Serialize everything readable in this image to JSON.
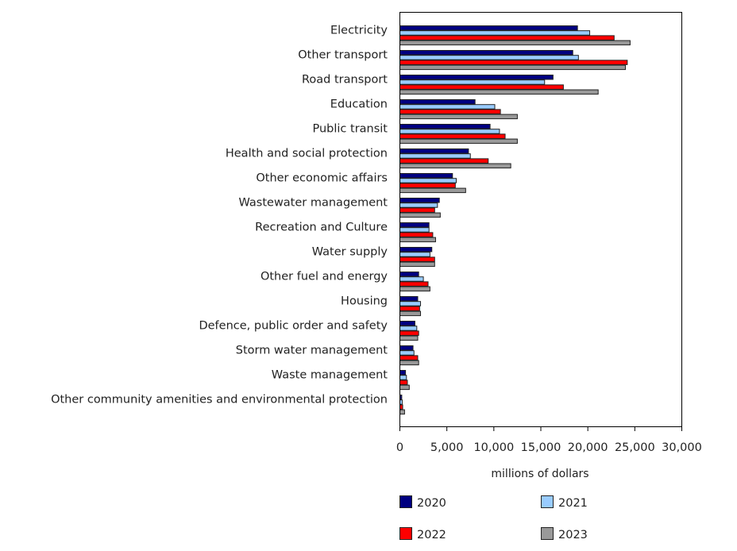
{
  "chart_data": {
    "type": "bar",
    "orientation": "horizontal",
    "title": "",
    "xlabel": "millions of dollars",
    "ylabel": "",
    "xlim": [
      0,
      30000
    ],
    "xticks": [
      0,
      5000,
      10000,
      15000,
      20000,
      25000,
      30000
    ],
    "xtick_labels": [
      "0",
      "5,000",
      "10,000",
      "15,000",
      "20,000",
      "25,000",
      "30,000"
    ],
    "grid": false,
    "legend_position": "bottom",
    "categories": [
      "Electricity",
      "Other transport",
      "Road transport",
      "Education",
      "Public transit",
      "Health and social protection",
      "Other economic affairs",
      "Wastewater management",
      "Recreation and Culture",
      "Water supply",
      "Other fuel and energy",
      "Housing",
      "Defence, public order and safety",
      "Storm water management",
      "Waste management",
      "Other community amenities and environmental protection"
    ],
    "series": [
      {
        "name": "2020",
        "color": "#000080",
        "values": [
          18900,
          18400,
          16300,
          8000,
          9600,
          7300,
          5600,
          4200,
          3100,
          3400,
          2000,
          1900,
          1600,
          1400,
          600,
          200
        ]
      },
      {
        "name": "2021",
        "color": "#99ccff",
        "values": [
          20200,
          19000,
          15400,
          10100,
          10600,
          7500,
          6000,
          4000,
          3100,
          3200,
          2500,
          2200,
          1800,
          1500,
          700,
          250
        ]
      },
      {
        "name": "2022",
        "color": "#ff0000",
        "values": [
          22800,
          24200,
          17400,
          10700,
          11200,
          9400,
          5900,
          3700,
          3500,
          3700,
          3000,
          2100,
          2000,
          1900,
          800,
          300
        ]
      },
      {
        "name": "2023",
        "color": "#999999",
        "values": [
          24500,
          24000,
          21100,
          12500,
          12500,
          11800,
          7000,
          4300,
          3800,
          3700,
          3200,
          2200,
          1900,
          2000,
          1000,
          500
        ]
      }
    ]
  }
}
